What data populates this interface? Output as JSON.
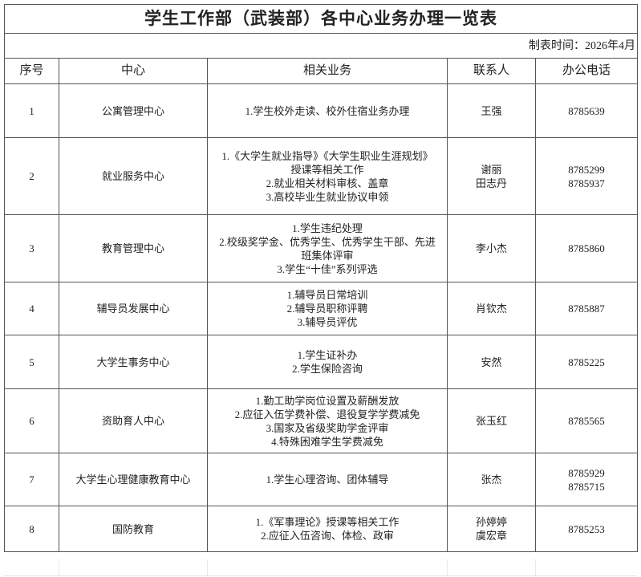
{
  "title": "学生工作部（武装部）各中心业务办理一览表",
  "date_label": "制表时间：2026年4月",
  "headers": [
    "序号",
    "中心",
    "相关业务",
    "联系人",
    "办公电话"
  ],
  "rows": [
    {
      "no": "1",
      "center": "公寓管理中心",
      "business": "1.学生校外走读、校外住宿业务办理",
      "contact": "王强",
      "phone": "8785639"
    },
    {
      "no": "2",
      "center": "就业服务中心",
      "business": "1.《大学生就业指导》《大学生职业生涯规划》\n授课等相关工作\n2.就业相关材料审核、盖章\n3.高校毕业生就业协议申领",
      "contact": "谢丽\n田志丹",
      "phone": "8785299\n8785937"
    },
    {
      "no": "3",
      "center": "教育管理中心",
      "business": "1.学生违纪处理\n2.校级奖学金、优秀学生、优秀学生干部、先进\n班集体评审\n3.学生“十佳”系列评选",
      "contact": "李小杰",
      "phone": "8785860"
    },
    {
      "no": "4",
      "center": "辅导员发展中心",
      "business": "1.辅导员日常培训\n2.辅导员职称评聘\n3.辅导员评优",
      "contact": "肖钦杰",
      "phone": "8785887"
    },
    {
      "no": "5",
      "center": "大学生事务中心",
      "business": "1.学生证补办\n2.学生保险咨询",
      "contact": "安然",
      "phone": "8785225"
    },
    {
      "no": "6",
      "center": "资助育人中心",
      "business": "1.勤工助学岗位设置及薪酬发放\n2.应征入伍学费补偿、退役复学学费减免\n3.国家及省级奖助学金评审\n4.特殊困难学生学费减免",
      "contact": "张玉红",
      "phone": "8785565"
    },
    {
      "no": "7",
      "center": "大学生心理健康教育中心",
      "business": "1.学生心理咨询、团体辅导",
      "contact": "张杰",
      "phone": "8785929\n8785715"
    },
    {
      "no": "8",
      "center": "国防教育",
      "business": "1.《军事理论》授课等相关工作\n2.应征入伍咨询、体检、政审",
      "contact": "孙婷婷\n虞宏章",
      "phone": "8785253"
    }
  ]
}
